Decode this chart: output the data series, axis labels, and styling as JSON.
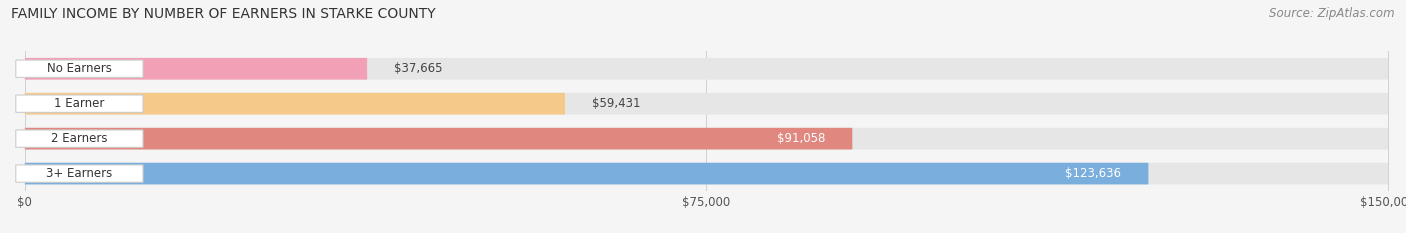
{
  "title": "Family Income by Number of Earners in Starke County",
  "source": "Source: ZipAtlas.com",
  "categories": [
    "No Earners",
    "1 Earner",
    "2 Earners",
    "3+ Earners"
  ],
  "values": [
    37665,
    59431,
    91058,
    123636
  ],
  "labels": [
    "$37,665",
    "$59,431",
    "$91,058",
    "$123,636"
  ],
  "bar_colors": [
    "#f2a0b5",
    "#f5c98a",
    "#e08880",
    "#7aaedc"
  ],
  "label_colors": [
    "#555555",
    "#555555",
    "#ffffff",
    "#ffffff"
  ],
  "label_inside": [
    false,
    false,
    true,
    true
  ],
  "xmax": 150000,
  "xticks": [
    0,
    75000,
    150000
  ],
  "xticklabels": [
    "$0",
    "$75,000",
    "$150,000"
  ],
  "fig_width": 14.06,
  "fig_height": 2.33,
  "dpi": 100,
  "title_fontsize": 10,
  "source_fontsize": 8.5,
  "bar_label_fontsize": 8.5,
  "category_fontsize": 8.5,
  "tick_fontsize": 8.5,
  "background_color": "#f5f5f5",
  "bar_bg_color": "#e6e6e6",
  "bar_height": 0.62,
  "badge_color": "#ffffff",
  "grid_color": "#d0d0d0"
}
